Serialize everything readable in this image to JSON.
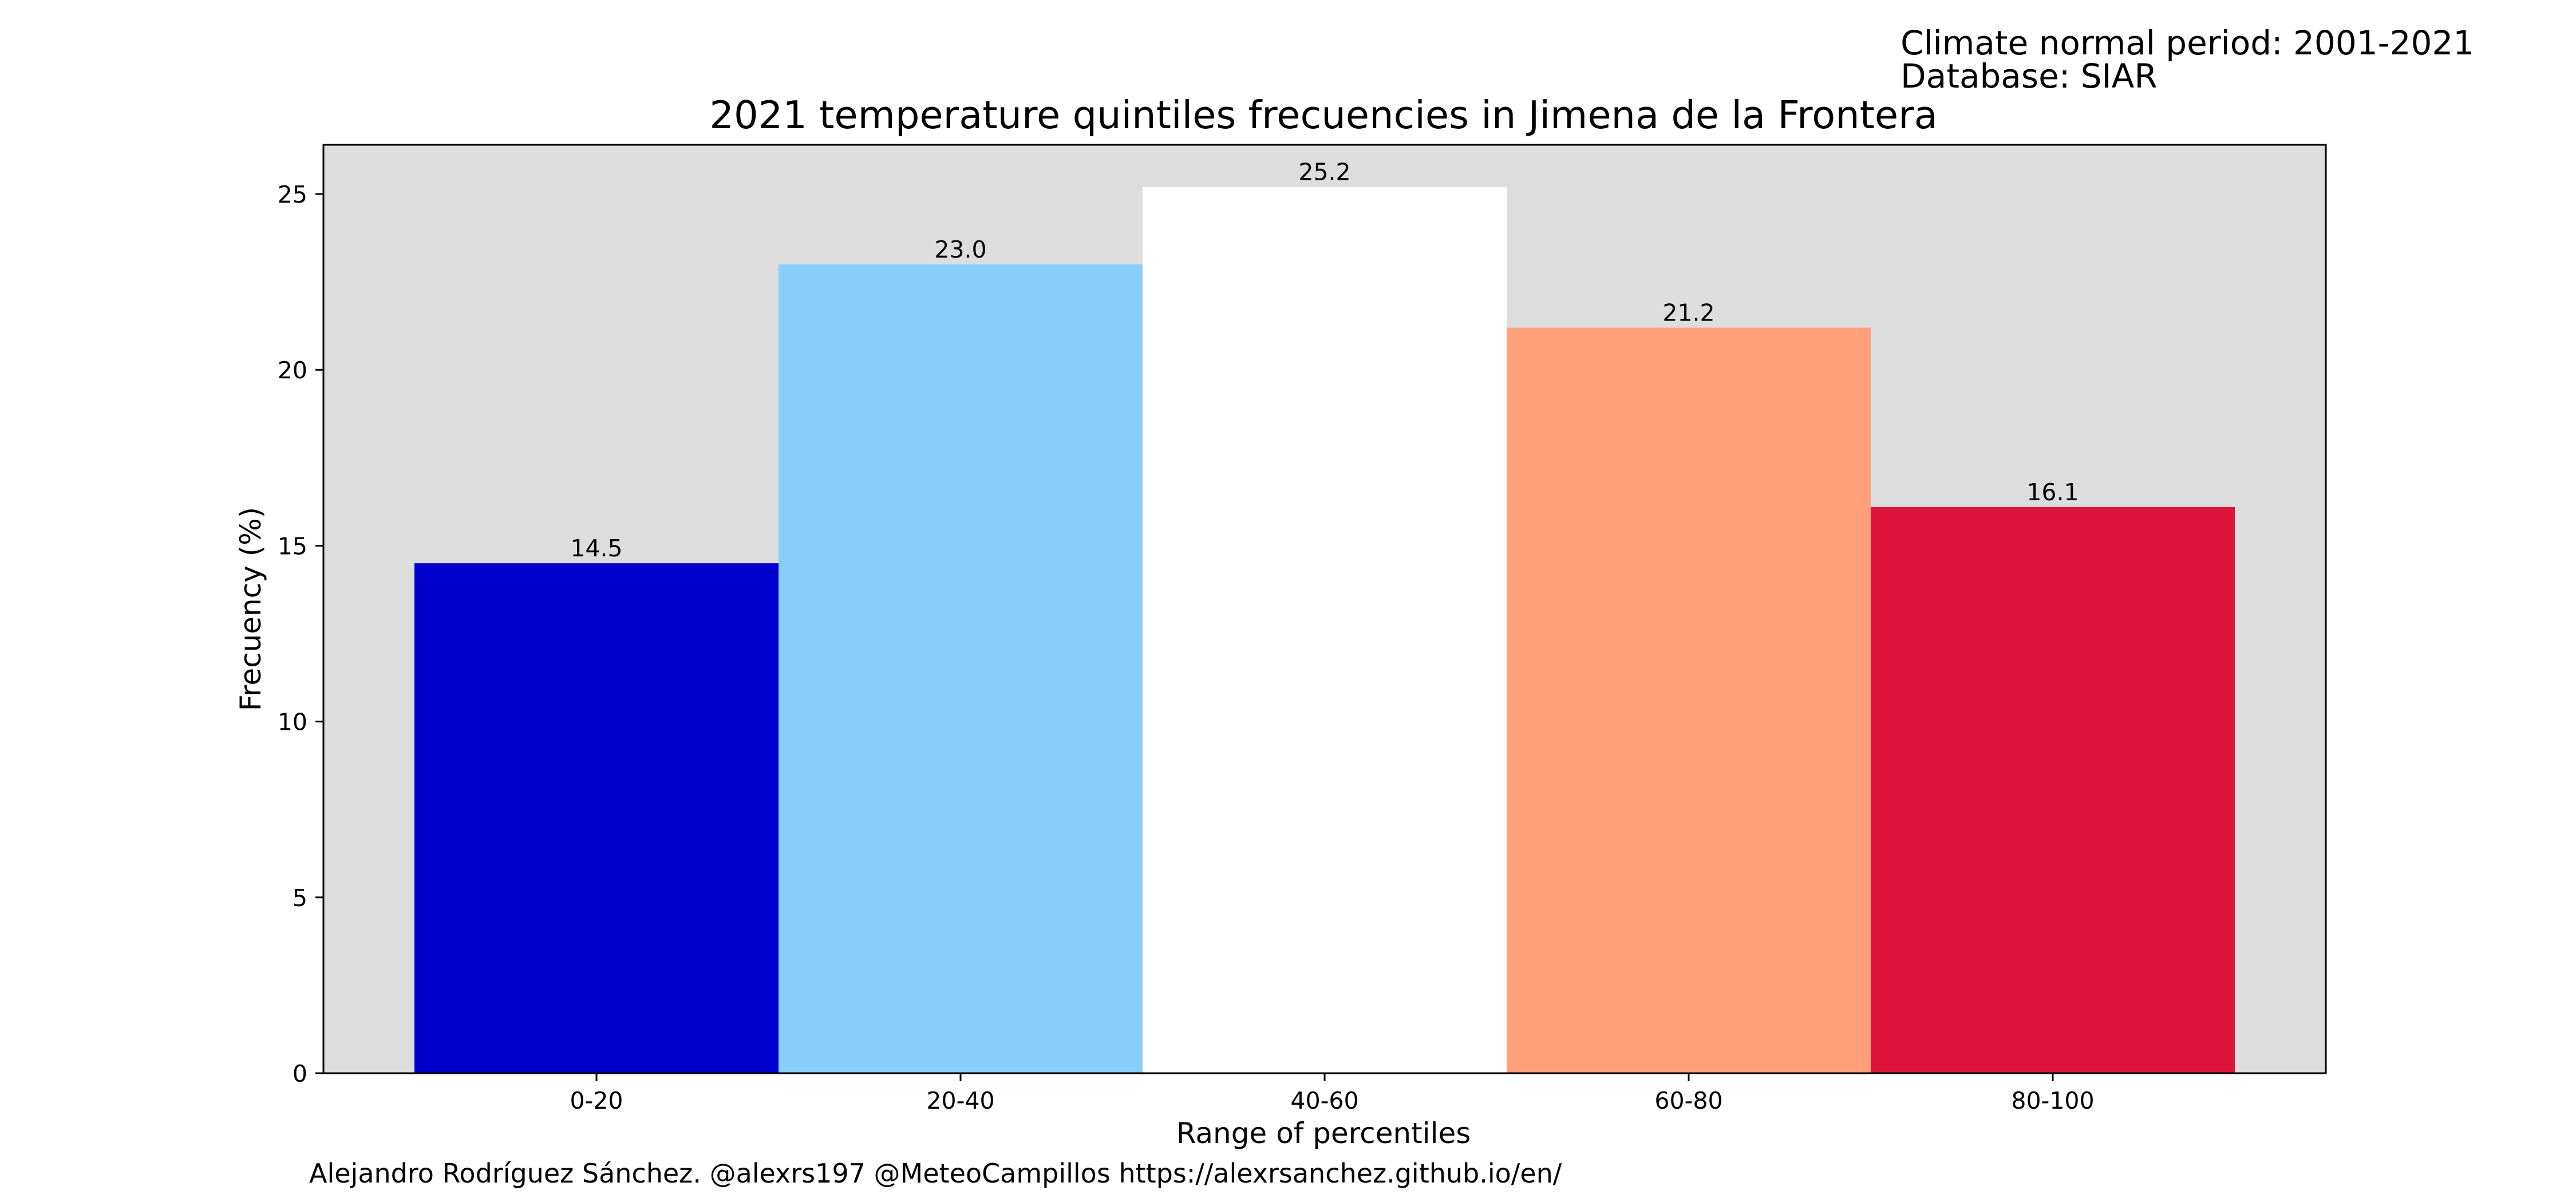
{
  "info": {
    "period": "Climate normal period: 2001-2021",
    "database": "Database: SIAR"
  },
  "credit": "Alejandro Rodríguez Sánchez. @alexrs197 @MeteoCampillos   https://alexrsanchez.github.io/en/",
  "chart_data": {
    "type": "bar",
    "title": "2021 temperature quintiles frecuencies in Jimena de la Frontera",
    "xlabel": "Range of percentiles",
    "ylabel": "Frecuency (%)",
    "categories": [
      "0-20",
      "20-40",
      "40-60",
      "60-80",
      "80-100"
    ],
    "values": [
      14.5,
      23.0,
      25.2,
      21.2,
      16.1
    ],
    "value_labels": [
      "14.5",
      "23.0",
      "25.2",
      "21.2",
      "16.1"
    ],
    "colors": [
      "#0000cd",
      "#87cefa",
      "#ffffff",
      "#ffa07a",
      "#dc143c"
    ],
    "ylim": [
      0,
      26.4
    ],
    "yticks": [
      0,
      5,
      10,
      15,
      20,
      25
    ],
    "background": "#dddddd",
    "grid": false,
    "legend": "none"
  }
}
